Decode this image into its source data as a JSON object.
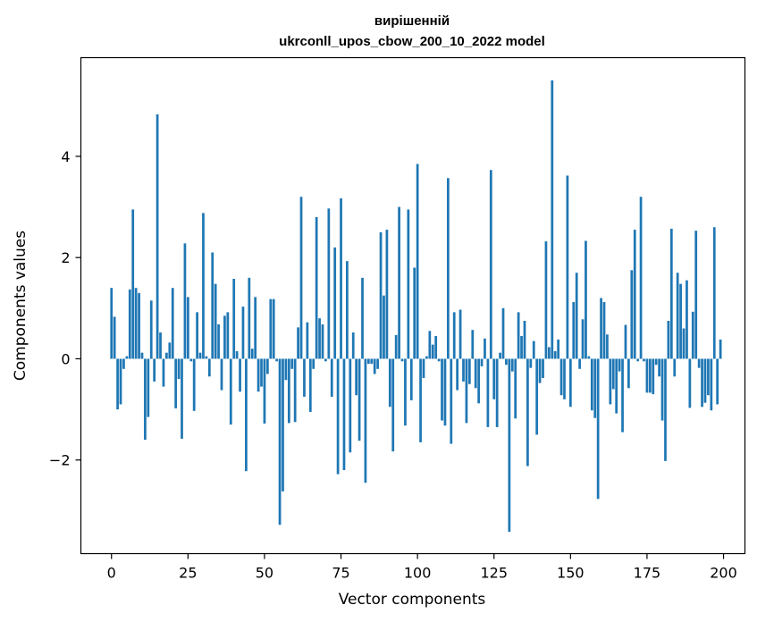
{
  "chart_data": {
    "type": "bar",
    "title": "вирішенній",
    "subtitle": "ukrconll_upos_cbow_200_10_2022 model",
    "xlabel": "Vector components",
    "ylabel": "Components values",
    "xlim": [
      -10,
      207
    ],
    "ylim": [
      -3.85,
      5.95
    ],
    "xticks": [
      0,
      25,
      50,
      75,
      100,
      125,
      150,
      175,
      200
    ],
    "yticks": [
      -2,
      0,
      2,
      4
    ],
    "bar_color": "#1f77b4",
    "grid": false,
    "x": [
      0,
      1,
      2,
      3,
      4,
      5,
      6,
      7,
      8,
      9,
      10,
      11,
      12,
      13,
      14,
      15,
      16,
      17,
      18,
      19,
      20,
      21,
      22,
      23,
      24,
      25,
      26,
      27,
      28,
      29,
      30,
      31,
      32,
      33,
      34,
      35,
      36,
      37,
      38,
      39,
      40,
      41,
      42,
      43,
      44,
      45,
      46,
      47,
      48,
      49,
      50,
      51,
      52,
      53,
      54,
      55,
      56,
      57,
      58,
      59,
      60,
      61,
      62,
      63,
      64,
      65,
      66,
      67,
      68,
      69,
      70,
      71,
      72,
      73,
      74,
      75,
      76,
      77,
      78,
      79,
      80,
      81,
      82,
      83,
      84,
      85,
      86,
      87,
      88,
      89,
      90,
      91,
      92,
      93,
      94,
      95,
      96,
      97,
      98,
      99,
      100,
      101,
      102,
      103,
      104,
      105,
      106,
      107,
      108,
      109,
      110,
      111,
      112,
      113,
      114,
      115,
      116,
      117,
      118,
      119,
      120,
      121,
      122,
      123,
      124,
      125,
      126,
      127,
      128,
      129,
      130,
      131,
      132,
      133,
      134,
      135,
      136,
      137,
      138,
      139,
      140,
      141,
      142,
      143,
      144,
      145,
      146,
      147,
      148,
      149,
      150,
      151,
      152,
      153,
      154,
      155,
      156,
      157,
      158,
      159,
      160,
      161,
      162,
      163,
      164,
      165,
      166,
      167,
      168,
      169,
      170,
      171,
      172,
      173,
      174,
      175,
      176,
      177,
      178,
      179,
      180,
      181,
      182,
      183,
      184,
      185,
      186,
      187,
      188,
      189,
      190,
      191,
      192,
      193,
      194,
      195,
      196,
      197,
      198,
      199
    ],
    "values": [
      1.4,
      0.83,
      -1.0,
      -0.9,
      -0.2,
      0.05,
      1.37,
      2.95,
      1.4,
      1.3,
      0.12,
      -1.6,
      -1.15,
      1.15,
      -0.45,
      4.83,
      0.52,
      -0.55,
      0.12,
      0.32,
      1.4,
      -0.98,
      -0.4,
      -1.58,
      2.28,
      1.22,
      -0.05,
      -1.03,
      0.92,
      0.12,
      2.88,
      0.05,
      -0.35,
      2.1,
      1.48,
      0.68,
      -0.62,
      0.85,
      0.92,
      -1.3,
      1.58,
      0.15,
      -0.65,
      1.03,
      -2.22,
      1.6,
      0.2,
      1.22,
      -0.65,
      -0.55,
      -1.28,
      -0.3,
      1.18,
      1.18,
      -0.05,
      -3.28,
      -2.62,
      -0.42,
      -1.27,
      -0.2,
      -1.25,
      0.62,
      3.2,
      -0.75,
      0.72,
      -1.05,
      -0.2,
      2.8,
      0.8,
      0.68,
      -0.05,
      2.97,
      -0.75,
      2.2,
      -2.28,
      3.17,
      -2.2,
      1.93,
      -1.85,
      0.52,
      -0.72,
      -1.62,
      1.6,
      -2.45,
      -0.1,
      -0.1,
      -0.3,
      -0.2,
      2.5,
      1.25,
      2.55,
      -0.95,
      -1.83,
      0.47,
      3.0,
      -0.05,
      -1.32,
      2.95,
      -0.82,
      1.8,
      3.85,
      -1.65,
      -0.38,
      0.05,
      0.55,
      0.28,
      0.45,
      -0.05,
      -1.22,
      -1.32,
      3.57,
      -1.68,
      0.92,
      -0.62,
      0.97,
      -0.45,
      -1.27,
      -0.5,
      0.57,
      -0.58,
      -0.88,
      -0.15,
      0.4,
      -1.35,
      3.73,
      -0.8,
      -1.35,
      0.12,
      1.0,
      -0.12,
      -3.42,
      -0.25,
      -1.18,
      0.92,
      0.45,
      0.75,
      -2.12,
      -0.18,
      0.35,
      -1.5,
      -0.48,
      -0.38,
      2.32,
      0.23,
      5.5,
      0.15,
      0.38,
      -0.72,
      -0.8,
      3.62,
      -0.95,
      1.12,
      1.7,
      -0.2,
      0.78,
      2.33,
      0.05,
      -1.02,
      -1.17,
      -2.77,
      1.2,
      1.12,
      0.48,
      -0.9,
      -0.6,
      -1.08,
      -0.25,
      -1.45,
      0.67,
      -0.58,
      1.75,
      2.55,
      -0.05,
      3.2,
      -0.05,
      -0.67,
      -0.67,
      -0.7,
      -0.12,
      -0.35,
      -1.22,
      -2.02,
      0.75,
      2.57,
      -0.35,
      1.7,
      1.48,
      0.6,
      1.55,
      -0.97,
      0.93,
      2.53,
      -0.18,
      -0.95,
      -0.87,
      -0.72,
      -1.02,
      2.6,
      -0.9,
      0.38
    ]
  }
}
